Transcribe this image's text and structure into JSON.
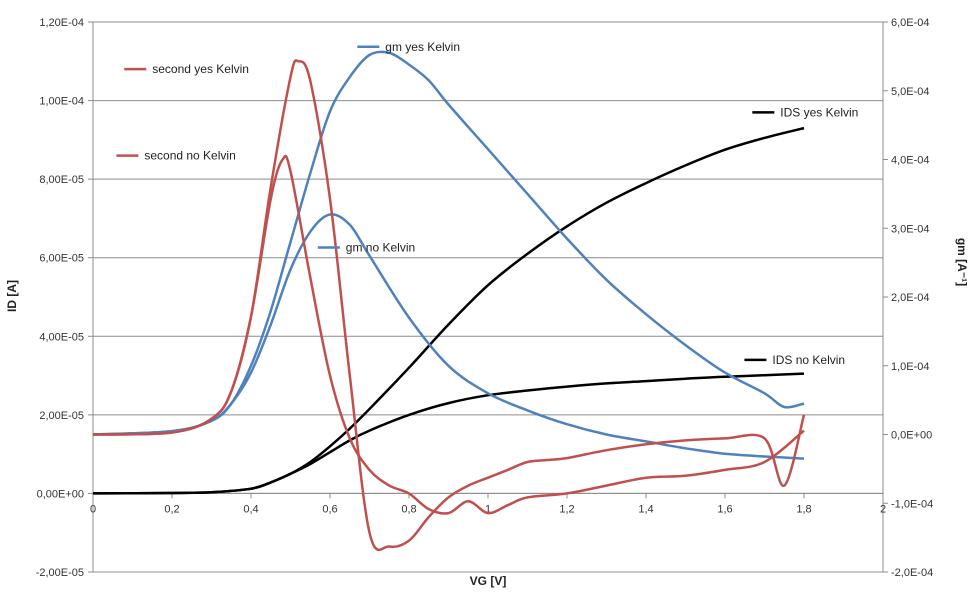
{
  "chart_data": {
    "type": "line",
    "title": "",
    "xlabel": "VG [V]",
    "ylabel": "ID [A]",
    "y2label": "gm [A⁻¹]",
    "xlim": [
      0,
      2
    ],
    "ylim": [
      -2e-05,
      0.00012
    ],
    "y2lim": [
      -0.0002,
      0.0006
    ],
    "x_ticks": [
      "0",
      "0,2",
      "0,4",
      "0,6",
      "0,8",
      "1",
      "1,2",
      "1,4",
      "1,6",
      "1,8",
      "2"
    ],
    "y_ticks": [
      "-2,00E-05",
      "0,00E+00",
      "2,00E-05",
      "4,00E-05",
      "6,00E-05",
      "8,00E-05",
      "1,00E-04",
      "1,20E-04"
    ],
    "y2_ticks": [
      "-2,0E-04",
      "-1,0E-04",
      "0,0E+00",
      "1,0E-04",
      "2,0E-04",
      "3,0E-04",
      "4,0E-04",
      "5,0E-04",
      "6,0E-04"
    ],
    "gridlines": "horizontal",
    "legend": "inline labels",
    "series": [
      {
        "name": "IDS yes Kelvin",
        "axis": "left",
        "color": "#000000",
        "x": [
          0,
          0.2,
          0.3,
          0.4,
          0.45,
          0.5,
          0.55,
          0.6,
          0.65,
          0.7,
          0.8,
          0.9,
          1.0,
          1.1,
          1.2,
          1.3,
          1.4,
          1.5,
          1.6,
          1.7,
          1.8
        ],
        "y": [
          0,
          1e-07,
          3e-07,
          1.2e-06,
          2.8e-06,
          5e-06,
          8e-06,
          1.2e-05,
          1.65e-05,
          2.15e-05,
          3.2e-05,
          4.3e-05,
          5.3e-05,
          6.1e-05,
          6.8e-05,
          7.4e-05,
          7.9e-05,
          8.35e-05,
          8.75e-05,
          9.05e-05,
          9.3e-05
        ],
        "label_x": 1.74,
        "label_y": 9.7e-05
      },
      {
        "name": "IDS no Kelvin",
        "axis": "left",
        "color": "#000000",
        "x": [
          0,
          0.2,
          0.3,
          0.4,
          0.45,
          0.5,
          0.55,
          0.6,
          0.65,
          0.7,
          0.8,
          0.9,
          1.0,
          1.1,
          1.2,
          1.3,
          1.4,
          1.5,
          1.6,
          1.7,
          1.8
        ],
        "y": [
          0,
          1e-07,
          3e-07,
          1.2e-06,
          2.8e-06,
          5e-06,
          7.5e-06,
          1.05e-05,
          1.35e-05,
          1.6e-05,
          2e-05,
          2.3e-05,
          2.5e-05,
          2.62e-05,
          2.72e-05,
          2.8e-05,
          2.86e-05,
          2.92e-05,
          2.97e-05,
          3.01e-05,
          3.05e-05
        ],
        "label_x": 1.72,
        "label_y": 3.4e-05
      },
      {
        "name": "gm yes Kelvin",
        "axis": "right",
        "color": "#4f81bd",
        "x": [
          0,
          0.2,
          0.3,
          0.35,
          0.4,
          0.45,
          0.5,
          0.55,
          0.6,
          0.65,
          0.7,
          0.75,
          0.8,
          0.85,
          0.9,
          1.0,
          1.1,
          1.2,
          1.3,
          1.4,
          1.5,
          1.6,
          1.7,
          1.75,
          1.8
        ],
        "y": [
          0,
          5e-06,
          2e-05,
          4.5e-05,
          0.0001,
          0.00018,
          0.00028,
          0.00038,
          0.00047,
          0.00052,
          0.000552,
          0.000555,
          0.000538,
          0.000515,
          0.00048,
          0.000415,
          0.00035,
          0.000285,
          0.000225,
          0.000175,
          0.00013,
          9e-05,
          6e-05,
          4e-05,
          4.5e-05
        ],
        "label_x": 0.74,
        "label_y": 0.000564
      },
      {
        "name": "gm no Kelvin",
        "axis": "right",
        "color": "#4f81bd",
        "x": [
          0,
          0.2,
          0.3,
          0.35,
          0.4,
          0.45,
          0.5,
          0.55,
          0.6,
          0.65,
          0.7,
          0.8,
          0.9,
          1.0,
          1.1,
          1.2,
          1.3,
          1.4,
          1.5,
          1.6,
          1.7,
          1.8
        ],
        "y": [
          0,
          5e-06,
          2e-05,
          4.5e-05,
          9e-05,
          0.00016,
          0.00024,
          0.000295,
          0.00032,
          0.000305,
          0.00026,
          0.00017,
          0.0001,
          6e-05,
          3.5e-05,
          1.5e-05,
          0,
          -1e-05,
          -2e-05,
          -2.8e-05,
          -3.2e-05,
          -3.5e-05
        ],
        "label_x": 0.64,
        "label_y": 0.000272
      },
      {
        "name": "second yes Kelvin",
        "axis": "left",
        "color": "#c0504d",
        "x": [
          0,
          0.2,
          0.3,
          0.35,
          0.4,
          0.45,
          0.5,
          0.52,
          0.55,
          0.6,
          0.65,
          0.7,
          0.75,
          0.8,
          0.85,
          0.9,
          0.95,
          1.0,
          1.05,
          1.1,
          1.15,
          1.2,
          1.3,
          1.4,
          1.5,
          1.6,
          1.7,
          1.75,
          1.8
        ],
        "y": [
          1.5e-05,
          1.55e-05,
          1.9e-05,
          2.6e-05,
          4.5e-05,
          7.8e-05,
          0.000106,
          0.00011,
          0.000105,
          7.5e-05,
          3e-05,
          -1e-05,
          -1.35e-05,
          -1.2e-05,
          -6e-06,
          -1e-06,
          2e-06,
          4e-06,
          6e-06,
          8e-06,
          8.5e-06,
          9e-06,
          1.1e-05,
          1.25e-05,
          1.35e-05,
          1.4e-05,
          1.4e-05,
          2e-06,
          2e-05
        ],
        "label_x": 0.15,
        "label_y": 0.000108
      },
      {
        "name": "second no Kelvin",
        "axis": "left",
        "color": "#c0504d",
        "x": [
          0,
          0.2,
          0.3,
          0.35,
          0.4,
          0.45,
          0.48,
          0.5,
          0.55,
          0.6,
          0.65,
          0.7,
          0.75,
          0.8,
          0.85,
          0.9,
          0.95,
          1.0,
          1.05,
          1.1,
          1.2,
          1.3,
          1.4,
          1.5,
          1.6,
          1.7,
          1.8
        ],
        "y": [
          1.5e-05,
          1.55e-05,
          1.9e-05,
          2.6e-05,
          4.5e-05,
          7.5e-05,
          8.5e-05,
          8.2e-05,
          5.5e-05,
          3e-05,
          1.4e-05,
          6e-06,
          2e-06,
          0,
          -4e-06,
          -5e-06,
          -2e-06,
          -5e-06,
          -3e-06,
          -1e-06,
          0,
          2e-06,
          4e-06,
          4.5e-06,
          6e-06,
          8e-06,
          1.6e-05
        ],
        "label_x": 0.13,
        "label_y": 8.6e-05
      }
    ]
  }
}
